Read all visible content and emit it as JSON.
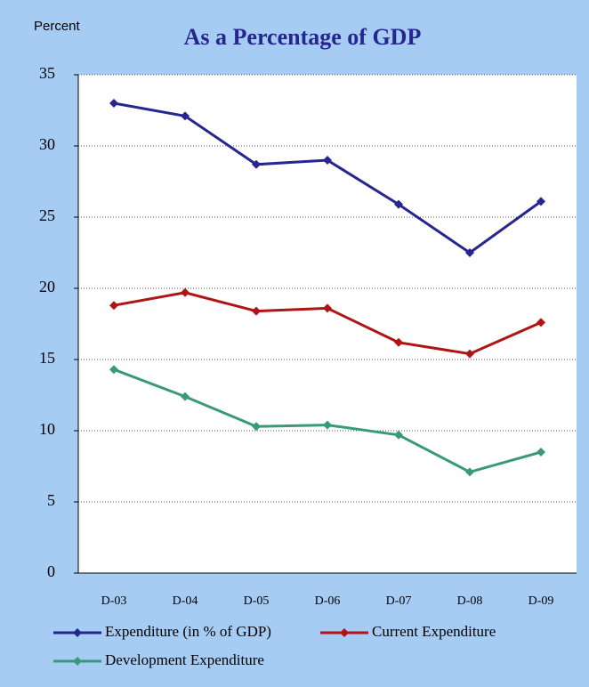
{
  "chart_data": {
    "type": "line",
    "title": "As a Percentage of GDP",
    "y_label": "Percent",
    "categories": [
      "D-03",
      "D-04",
      "D-05",
      "D-06",
      "D-07",
      "D-08",
      "D-09"
    ],
    "series": [
      {
        "name": "Expenditure (in % of GDP)",
        "color": "#262690",
        "values": [
          33.0,
          32.1,
          28.7,
          29.0,
          25.9,
          22.5,
          26.1
        ]
      },
      {
        "name": "Current Expenditure",
        "color": "#b01414",
        "values": [
          18.8,
          19.7,
          18.4,
          18.6,
          16.2,
          15.4,
          17.6
        ]
      },
      {
        "name": "Development Expenditure",
        "color": "#3a9a78",
        "values": [
          14.3,
          12.4,
          10.3,
          10.4,
          9.7,
          7.1,
          8.5
        ]
      }
    ],
    "ylim": [
      0,
      35
    ],
    "yticks": [
      0,
      5,
      10,
      15,
      20,
      25,
      30,
      35
    ],
    "grid": true
  }
}
